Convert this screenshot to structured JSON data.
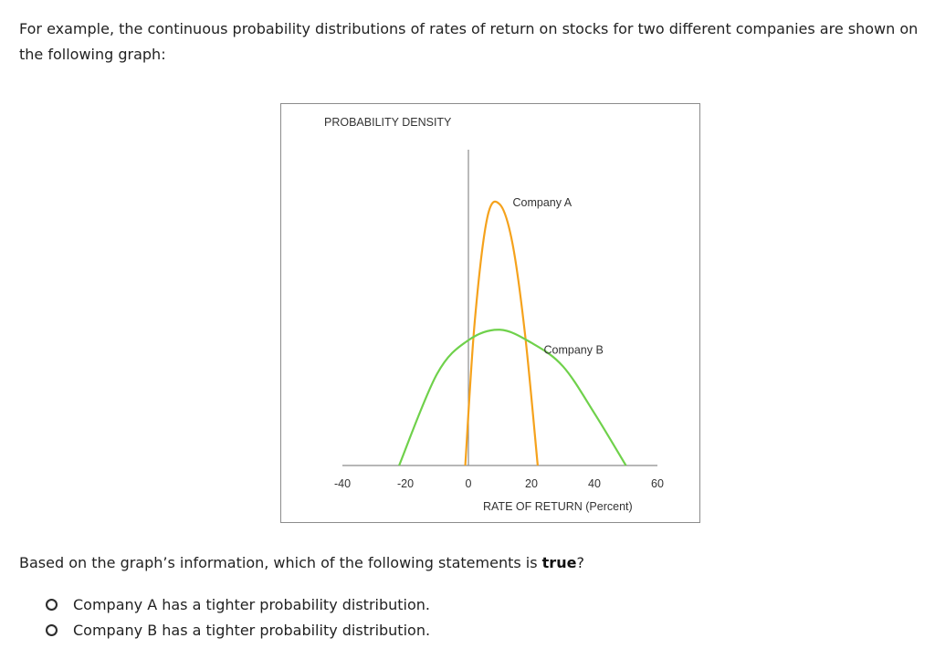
{
  "intro_text": "For example, the continuous probability distributions of rates of return on stocks for two different companies are shown on the following graph:",
  "question": {
    "prefix": "Based on the graph’s information, which of the following statements is ",
    "emphasis": "true",
    "suffix": "?"
  },
  "options": [
    {
      "label": "Company A has a tighter probability distribution."
    },
    {
      "label": "Company B has a tighter probability distribution."
    }
  ],
  "chart_data": {
    "type": "line",
    "ylabel": "PROBABILITY DENSITY",
    "xlabel": "RATE OF RETURN (Percent)",
    "x_ticks": [
      "-40",
      "-20",
      "0",
      "20",
      "40",
      "60"
    ],
    "xlim": [
      -40,
      60
    ],
    "series": [
      {
        "name": "Company A",
        "x": [
          -1,
          2,
          6,
          10,
          14,
          18,
          22
        ],
        "y": [
          0,
          0.55,
          0.95,
          1.0,
          0.85,
          0.5,
          0
        ],
        "color": "#f5a21c"
      },
      {
        "name": "Company B",
        "x": [
          -22,
          -10,
          0,
          10,
          20,
          30,
          40,
          50
        ],
        "y": [
          0,
          0.35,
          0.48,
          0.52,
          0.47,
          0.38,
          0.2,
          0
        ],
        "color": "#6fd14b"
      }
    ],
    "grid": false
  }
}
